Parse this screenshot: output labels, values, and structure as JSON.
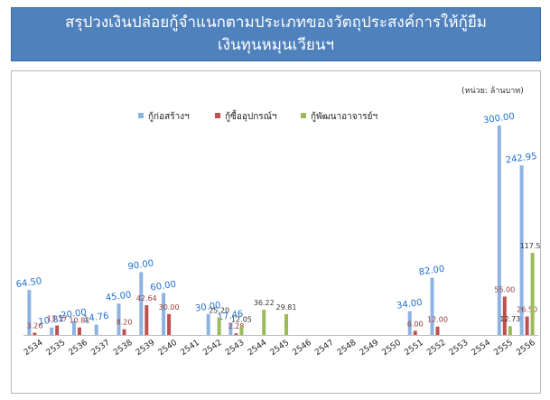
{
  "title": "สรุปวงเงินปล่อยกู้จำแนกตามประเภทของวัตถุประสงค์การให้กู้ยืม\nเงินทุนหมุนเวียนฯ",
  "colors": {
    "title_bg": "#4f81bd",
    "series": [
      "#8db3e2",
      "#c0504d",
      "#9bbb59"
    ],
    "blue_label": "#1f6fd1",
    "red_label": "#953735",
    "dark_label": "#333333"
  },
  "chart_data": {
    "type": "bar",
    "unit_note": "(หน่วย: ล้านบาท)",
    "categories": [
      "2534",
      "2535",
      "2536",
      "2537",
      "2538",
      "2539",
      "2540",
      "2541",
      "2542",
      "2543",
      "2544",
      "2545",
      "2546",
      "2547",
      "2548",
      "2549",
      "2550",
      "2551",
      "2552",
      "2553",
      "2554",
      "2555",
      "2556"
    ],
    "series": [
      {
        "name": "กู้ก่อสร้างฯ",
        "values": [
          64.5,
          10.81,
          20.0,
          14.76,
          45.0,
          90.0,
          60.0,
          0,
          30.0,
          17.46,
          0,
          0,
          0,
          0,
          0,
          0,
          0,
          34.0,
          82.0,
          0,
          0,
          300.0,
          242.95
        ],
        "labels": [
          "64.50",
          "10.81",
          "20.00",
          "14.76",
          "45.00",
          "90.00",
          "60.00",
          "",
          "30.00",
          "17.46",
          "",
          "",
          "",
          "",
          "",
          "",
          "",
          "34.00",
          "82.00",
          "",
          "",
          "300.00",
          "242.95"
        ]
      },
      {
        "name": "กู้ซื้ออุปกรณ์ฯ",
        "values": [
          3.26,
          13.57,
          10.81,
          0,
          8.2,
          42.64,
          30.0,
          0,
          0,
          2.28,
          0,
          0,
          0,
          0,
          0,
          0,
          0,
          6.0,
          12.0,
          0,
          0,
          55.0,
          26.5
        ],
        "labels": [
          "3.26",
          "13.57",
          "10.81",
          "",
          "8.20",
          "42.64",
          "30.00",
          "",
          "",
          "2.28",
          "",
          "",
          "",
          "",
          "",
          "",
          "",
          "6.00",
          "12.00",
          "",
          "",
          "55.00",
          "26.50"
        ]
      },
      {
        "name": "กู้พัฒนาอาจารย์ฯ",
        "values": [
          0,
          0,
          0,
          0,
          0,
          0,
          0,
          0,
          25.2,
          12.05,
          36.22,
          29.81,
          0,
          0,
          0,
          0,
          0,
          0,
          0,
          0,
          0,
          12.73,
          117.59
        ],
        "labels": [
          "",
          "",
          "",
          "",
          "",
          "",
          "",
          "",
          "25.20",
          "12.05",
          "36.22",
          "29.81",
          "",
          "",
          "",
          "",
          "",
          "",
          "",
          "",
          "",
          "12.73",
          "117.59"
        ]
      }
    ],
    "ylim": [
      0,
      300
    ],
    "grid": false,
    "legend_position": "top-center"
  }
}
